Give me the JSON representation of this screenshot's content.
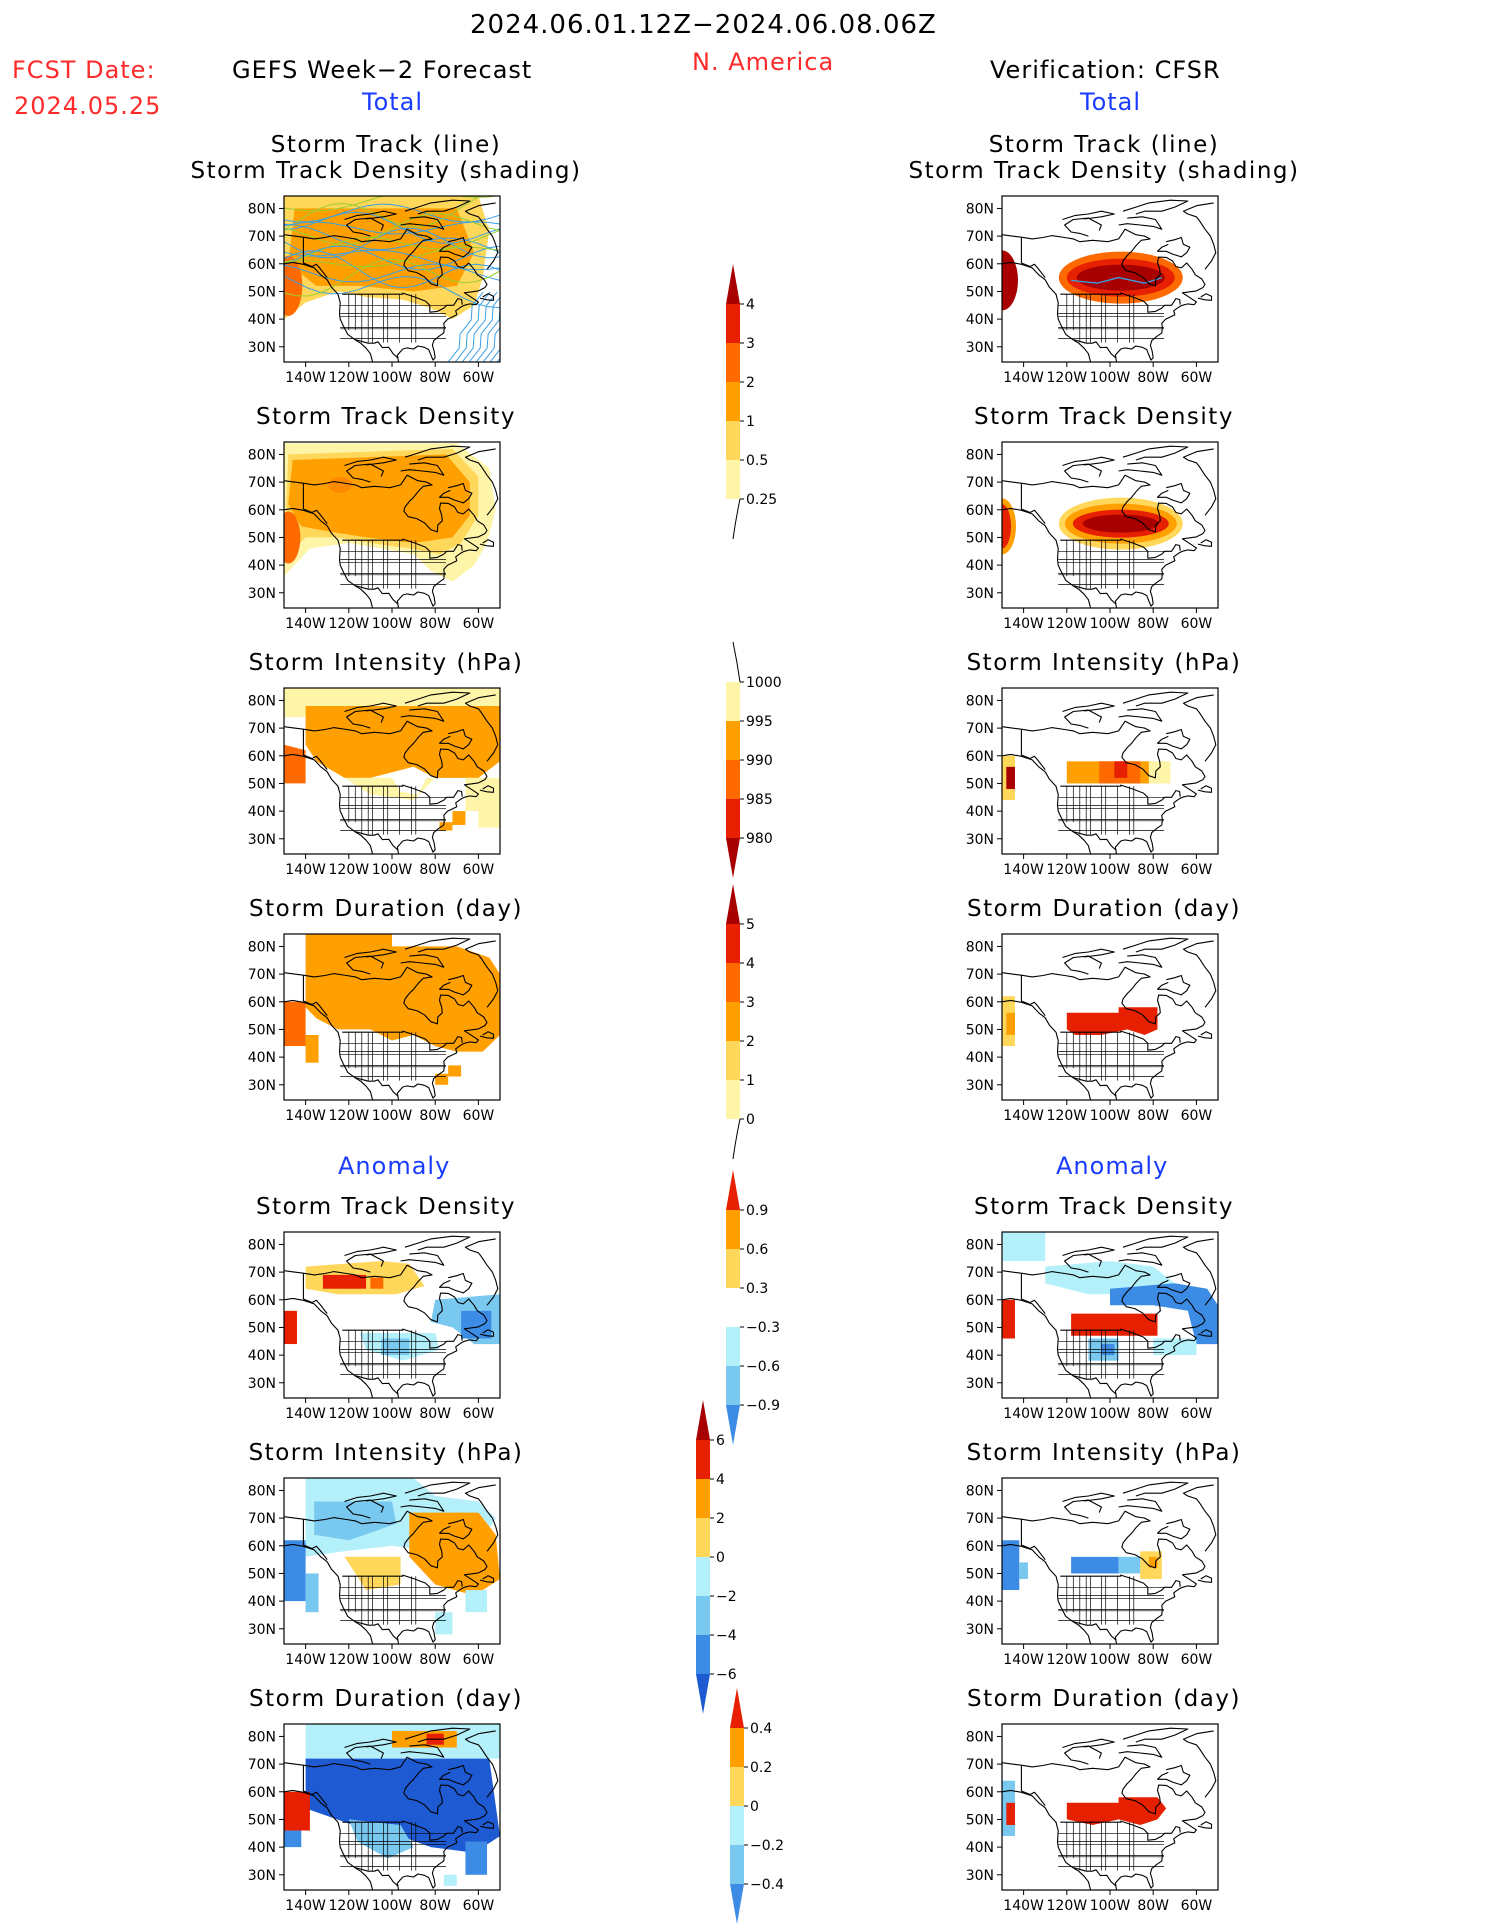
{
  "header": {
    "date_range": "2024.06.01.12Z−2024.06.08.06Z",
    "fcst_label": "FCST Date:",
    "fcst_date": "2024.05.25",
    "forecast_title": "GEFS Week−2 Forecast",
    "region": "N. America",
    "verification_title": "Verification: CFSR"
  },
  "sections": {
    "total": "Total",
    "anomaly": "Anomaly"
  },
  "panel_titles": {
    "track_line": "Storm Track (line)",
    "track_shading": "Storm Track Density (shading)",
    "density": "Storm Track Density",
    "intensity": "Storm Intensity (hPa)",
    "duration": "Storm Duration (day)"
  },
  "axes": {
    "lat_labels": [
      "80N",
      "70N",
      "60N",
      "50N",
      "40N",
      "30N"
    ],
    "lon_labels": [
      "140W",
      "120W",
      "100W",
      "80W",
      "60W"
    ]
  },
  "colorbars": {
    "density_total": [
      "4",
      "3",
      "2",
      "1",
      "0.5",
      "0.25"
    ],
    "intensity_total": [
      "1000",
      "995",
      "990",
      "985",
      "980"
    ],
    "duration_total": [
      "5",
      "4",
      "3",
      "2",
      "1",
      "0"
    ],
    "density_anom": [
      "0.9",
      "0.6",
      "0.3",
      "−0.3",
      "−0.6",
      "−0.9"
    ],
    "intensity_anom": [
      "6",
      "4",
      "2",
      "0",
      "−2",
      "−4",
      "−6"
    ],
    "duration_anom": [
      "0.4",
      "0.2",
      "0",
      "−0.2",
      "−0.4"
    ]
  },
  "colors": {
    "warm_light": "#fff5a8",
    "warm_mid": "#ffd75a",
    "orange": "#ff9f00",
    "orange_dark": "#ff6a00",
    "red": "#e62000",
    "dark_red": "#a80000",
    "cool_light": "#b4f0fa",
    "cool_mid": "#78c8f0",
    "blue": "#3c8ce6",
    "blue_dark": "#1e5ad2",
    "track_line": "#3aa0e6"
  }
}
